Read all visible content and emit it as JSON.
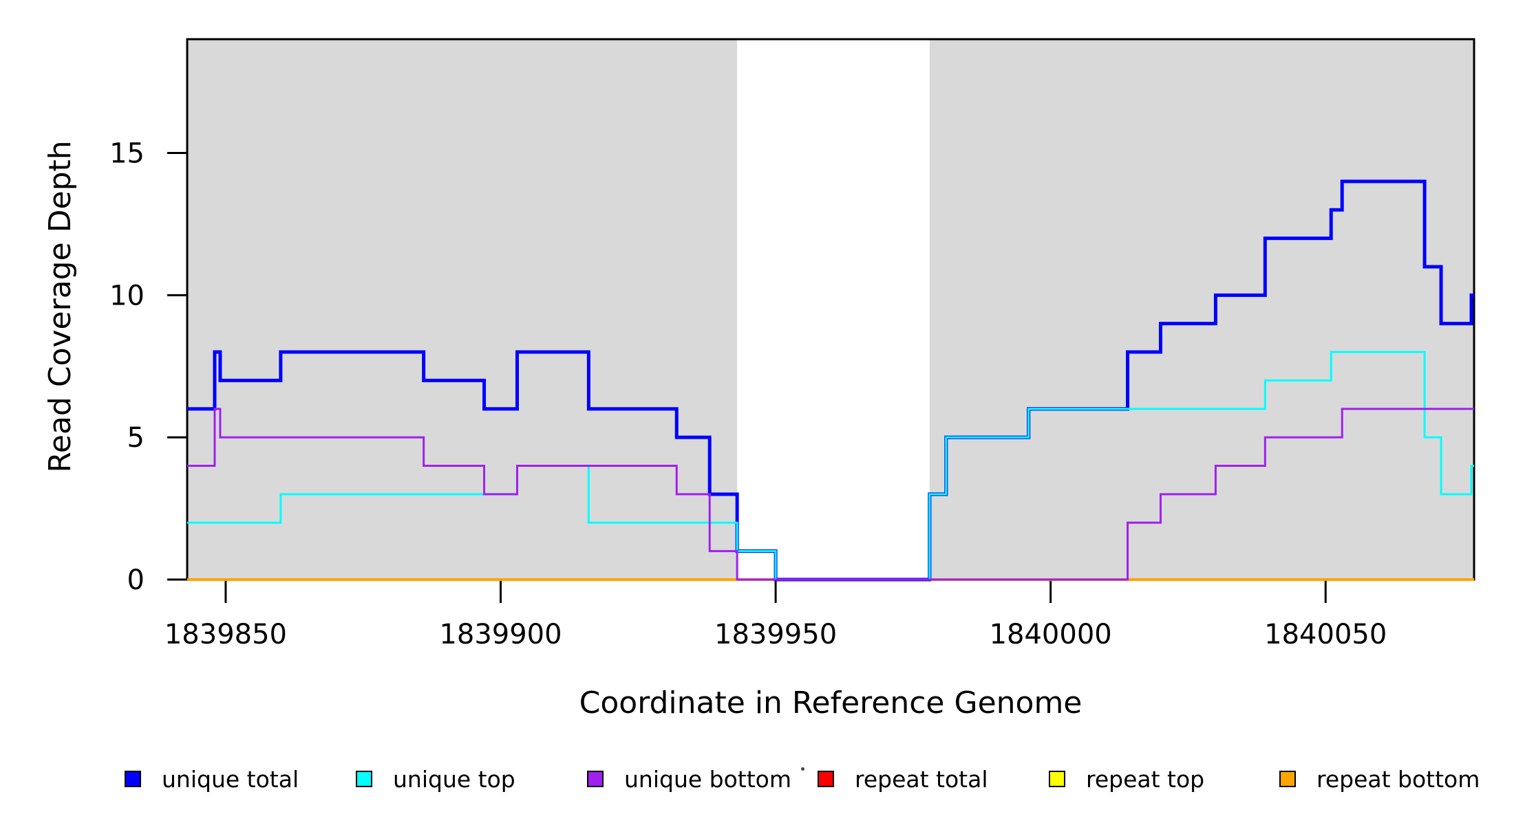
{
  "figure": {
    "background": "#FFFFFF"
  },
  "chart_data": {
    "type": "line",
    "step_mode": "post",
    "title": "",
    "xlabel": "Coordinate in Reference Genome",
    "ylabel": "Read Coverage Depth",
    "xlim": [
      1839843,
      1840077
    ],
    "ylim": [
      0,
      19
    ],
    "x_ticks": [
      1839850,
      1839900,
      1839950,
      1840000,
      1840050
    ],
    "y_ticks": [
      0,
      5,
      10,
      15
    ],
    "x_end": 1840077,
    "grid": false,
    "legend_position": "bottom",
    "shade_color": "#D9D9D9",
    "shaded_regions": [
      {
        "x0": 1839843,
        "x1": 1839943
      },
      {
        "x0": 1839978,
        "x1": 1840077
      }
    ],
    "draw_order": [
      3,
      4,
      5,
      0,
      1,
      2
    ],
    "series": [
      {
        "id": "unique-total",
        "name": "unique total",
        "color": "#0000FF",
        "lwd": 5,
        "points": [
          [
            1839843,
            6
          ],
          [
            1839848,
            8
          ],
          [
            1839849,
            7
          ],
          [
            1839860,
            8
          ],
          [
            1839886,
            7
          ],
          [
            1839897,
            6
          ],
          [
            1839903,
            8
          ],
          [
            1839916,
            6
          ],
          [
            1839932,
            5
          ],
          [
            1839938,
            3
          ],
          [
            1839943,
            1
          ],
          [
            1839950,
            0
          ],
          [
            1839978,
            3
          ],
          [
            1839981,
            5
          ],
          [
            1839996,
            6
          ],
          [
            1840014,
            8
          ],
          [
            1840020,
            9
          ],
          [
            1840030,
            10
          ],
          [
            1840039,
            12
          ],
          [
            1840051,
            13
          ],
          [
            1840053,
            14
          ],
          [
            1840068,
            11
          ],
          [
            1840071,
            9
          ],
          [
            1840076.5,
            10
          ]
        ]
      },
      {
        "id": "unique-top",
        "name": "unique top",
        "color": "#00FFFF",
        "lwd": 3,
        "points": [
          [
            1839843,
            2
          ],
          [
            1839860,
            3
          ],
          [
            1839903,
            4
          ],
          [
            1839916,
            2
          ],
          [
            1839943,
            1
          ],
          [
            1839950,
            0
          ],
          [
            1839978,
            3
          ],
          [
            1839981,
            5
          ],
          [
            1839996,
            6
          ],
          [
            1840039,
            7
          ],
          [
            1840051,
            8
          ],
          [
            1840068,
            5
          ],
          [
            1840071,
            3
          ],
          [
            1840076.5,
            4
          ]
        ]
      },
      {
        "id": "unique-bottom",
        "name": "unique bottom",
        "color": "#A020F0",
        "lwd": 3,
        "points": [
          [
            1839843,
            4
          ],
          [
            1839848,
            6
          ],
          [
            1839849,
            5
          ],
          [
            1839886,
            4
          ],
          [
            1839897,
            3
          ],
          [
            1839903,
            4
          ],
          [
            1839932,
            3
          ],
          [
            1839938,
            1
          ],
          [
            1839943,
            0
          ],
          [
            1840014,
            2
          ],
          [
            1840020,
            3
          ],
          [
            1840030,
            4
          ],
          [
            1840039,
            5
          ],
          [
            1840053,
            6
          ]
        ]
      },
      {
        "id": "repeat-total",
        "name": "repeat total",
        "color": "#FF0000",
        "lwd": 3,
        "points": [
          [
            1839843,
            0
          ]
        ]
      },
      {
        "id": "repeat-top",
        "name": "repeat top",
        "color": "#FFFF00",
        "lwd": 3,
        "points": [
          [
            1839843,
            0
          ]
        ]
      },
      {
        "id": "repeat-bottom",
        "name": "repeat bottom",
        "color": "#FFA500",
        "lwd": 4,
        "points": [
          [
            1839843,
            0
          ]
        ]
      }
    ]
  }
}
